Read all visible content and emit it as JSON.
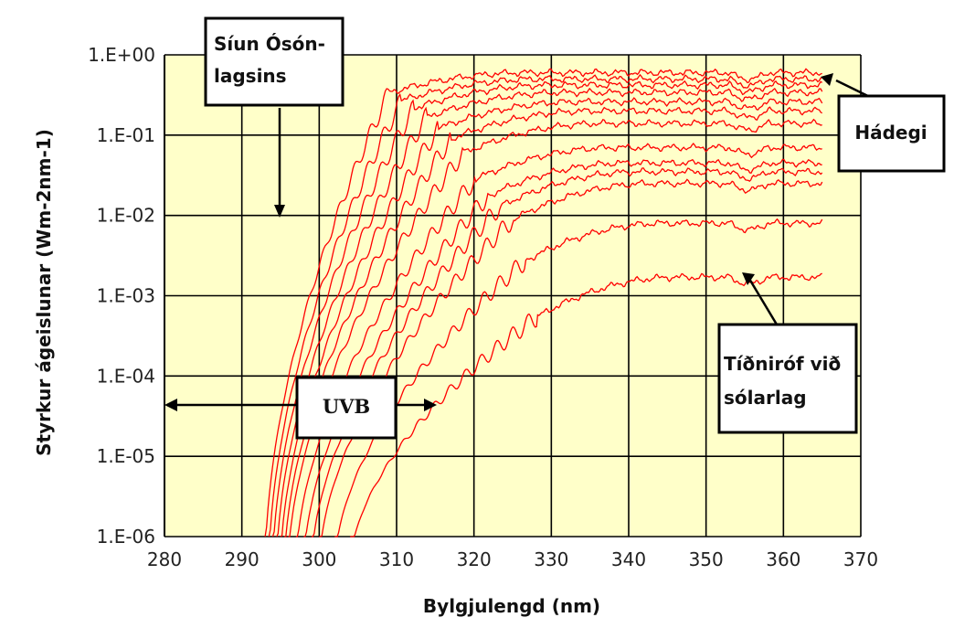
{
  "chart_data": {
    "type": "line",
    "title": "",
    "xlabel": "Bylgjulengd (nm)",
    "ylabel": "Styrkur ágeislunar (Wm-2nm-1)",
    "xlim": [
      280,
      370
    ],
    "ylim": [
      1e-06,
      1
    ],
    "yscale": "log",
    "grid": true,
    "x_ticks": [
      "280",
      "290",
      "300",
      "310",
      "320",
      "330",
      "340",
      "350",
      "360",
      "370"
    ],
    "y_ticks": [
      "1.E+00",
      "1.E-01",
      "1.E-02",
      "1.E-03",
      "1.E-04",
      "1.E-05",
      "1.E-06"
    ],
    "series_note": "Family of solar UV spectra from noon (top) to sunset (bottom)",
    "series": [
      {
        "plateau": 0.6,
        "x_cutoff": 293
      },
      {
        "plateau": 0.5,
        "x_cutoff": 293.5
      },
      {
        "plateau": 0.42,
        "x_cutoff": 294
      },
      {
        "plateau": 0.34,
        "x_cutoff": 294.5
      },
      {
        "plateau": 0.26,
        "x_cutoff": 295
      },
      {
        "plateau": 0.2,
        "x_cutoff": 295.5
      },
      {
        "plateau": 0.14,
        "x_cutoff": 296
      },
      {
        "plateau": 0.07,
        "x_cutoff": 297
      },
      {
        "plateau": 0.045,
        "x_cutoff": 298
      },
      {
        "plateau": 0.035,
        "x_cutoff": 299
      },
      {
        "plateau": 0.025,
        "x_cutoff": 300
      },
      {
        "plateau": 0.008,
        "x_cutoff": 302
      },
      {
        "plateau": 0.0017,
        "x_cutoff": 304
      }
    ],
    "annotations": {
      "ozone": [
        "Síun Ósón-",
        "lagsins"
      ],
      "noon": "Hádegi",
      "uvb": "UVB",
      "sunset": [
        "Tíðniróf við",
        "sólarlag"
      ]
    },
    "line_color": "#ff0000",
    "plot_bg": "#ffffc9"
  }
}
